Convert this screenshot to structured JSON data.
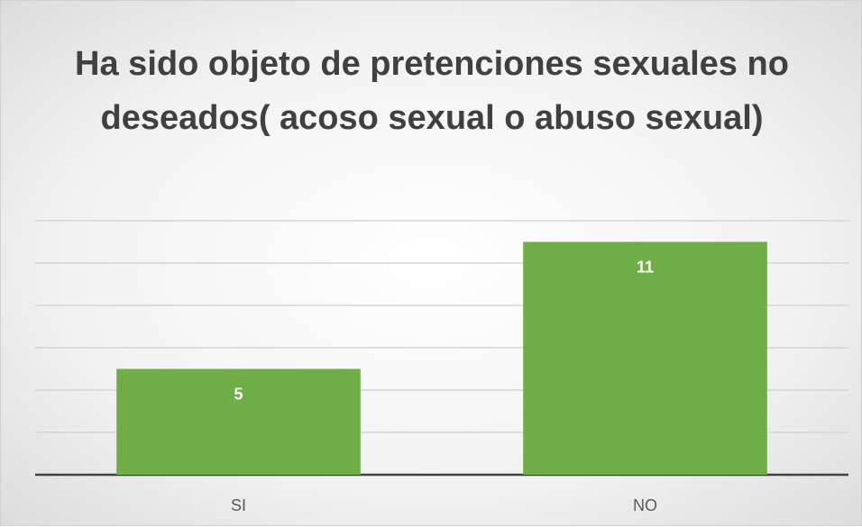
{
  "chart_data": {
    "type": "bar",
    "title": "Ha sido objeto de pretenciones sexuales no deseados( acoso sexual o abuso sexual)",
    "categories": [
      "SI",
      "NO"
    ],
    "values": [
      5,
      11
    ],
    "color": "#70ad47",
    "ylim": [
      0,
      12
    ],
    "yticks": [
      0,
      2,
      4,
      6,
      8,
      10,
      12
    ],
    "grid": true
  }
}
